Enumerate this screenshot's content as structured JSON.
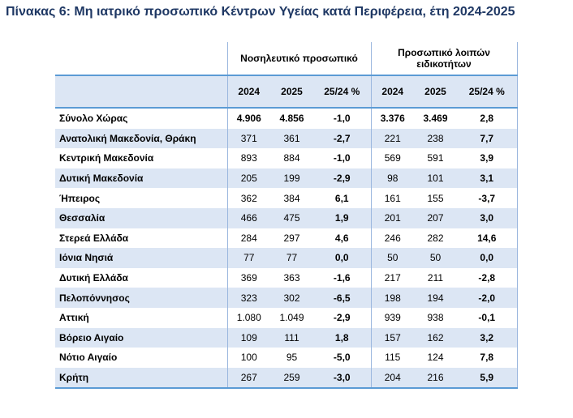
{
  "title": "Πίνακας 6: Μη ιατρικό προσωπικό Κέντρων Υγείας κατά Περιφέρεια, έτη 2024-2025",
  "headers": {
    "group1": "Νοσηλευτικό προσωπικό",
    "group2": "Προσωπικό λοιπών ειδικοτήτων",
    "year1": "2024",
    "year2": "2025",
    "pct": "25/24 %"
  },
  "rows": [
    {
      "region": "Σύνολο Χώρας",
      "n2024": "4.906",
      "n2025": "4.856",
      "npct": "-1,0",
      "o2024": "3.376",
      "o2025": "3.469",
      "opct": "2,8"
    },
    {
      "region": "Ανατολική Μακεδονία, Θράκη",
      "n2024": "371",
      "n2025": "361",
      "npct": "-2,7",
      "o2024": "221",
      "o2025": "238",
      "opct": "7,7"
    },
    {
      "region": "Κεντρική Μακεδονία",
      "n2024": "893",
      "n2025": "884",
      "npct": "-1,0",
      "o2024": "569",
      "o2025": "591",
      "opct": "3,9"
    },
    {
      "region": "Δυτική Μακεδονία",
      "n2024": "205",
      "n2025": "199",
      "npct": "-2,9",
      "o2024": "98",
      "o2025": "101",
      "opct": "3,1"
    },
    {
      "region": "Ήπειρος",
      "n2024": "362",
      "n2025": "384",
      "npct": "6,1",
      "o2024": "161",
      "o2025": "155",
      "opct": "-3,7"
    },
    {
      "region": "Θεσσαλία",
      "n2024": "466",
      "n2025": "475",
      "npct": "1,9",
      "o2024": "201",
      "o2025": "207",
      "opct": "3,0"
    },
    {
      "region": "Στερεά Ελλάδα",
      "n2024": "284",
      "n2025": "297",
      "npct": "4,6",
      "o2024": "246",
      "o2025": "282",
      "opct": "14,6"
    },
    {
      "region": "Ιόνια Νησιά",
      "n2024": "77",
      "n2025": "77",
      "npct": "0,0",
      "o2024": "50",
      "o2025": "50",
      "opct": "0,0"
    },
    {
      "region": "Δυτική Ελλάδα",
      "n2024": "369",
      "n2025": "363",
      "npct": "-1,6",
      "o2024": "217",
      "o2025": "211",
      "opct": "-2,8"
    },
    {
      "region": "Πελοπόννησος",
      "n2024": "323",
      "n2025": "302",
      "npct": "-6,5",
      "o2024": "198",
      "o2025": "194",
      "opct": "-2,0"
    },
    {
      "region": "Αττική",
      "n2024": "1.080",
      "n2025": "1.049",
      "npct": "-2,9",
      "o2024": "939",
      "o2025": "938",
      "opct": "-0,1"
    },
    {
      "region": "Βόρειο Αιγαίο",
      "n2024": "109",
      "n2025": "111",
      "npct": "1,8",
      "o2024": "157",
      "o2025": "162",
      "opct": "3,2"
    },
    {
      "region": "Νότιο Αιγαίο",
      "n2024": "100",
      "n2025": "95",
      "npct": "-5,0",
      "o2024": "115",
      "o2025": "124",
      "opct": "7,8"
    },
    {
      "region": "Κρήτη",
      "n2024": "267",
      "n2025": "259",
      "npct": "-3,0",
      "o2024": "204",
      "o2025": "216",
      "opct": "5,9"
    }
  ]
}
